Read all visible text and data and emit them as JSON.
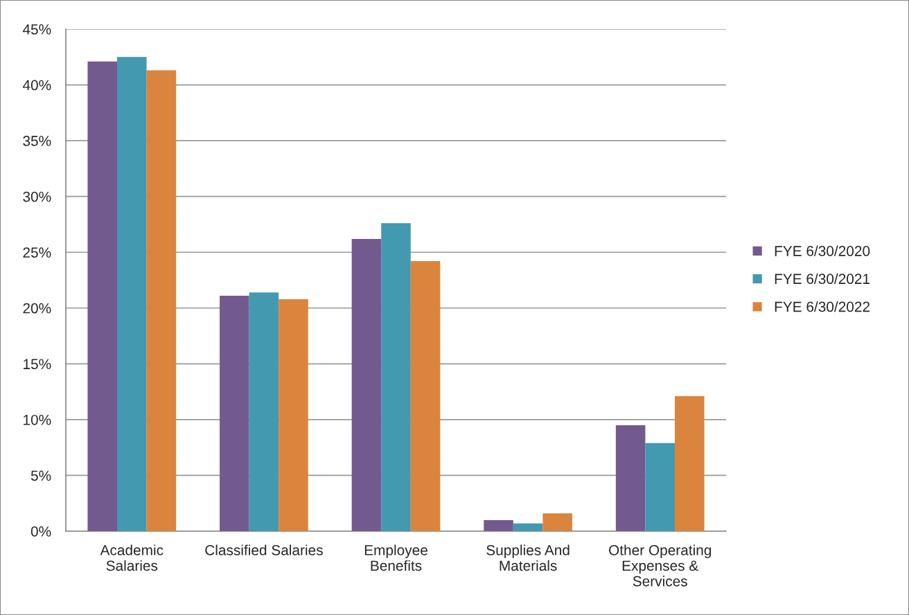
{
  "chart_data": {
    "type": "bar",
    "categories": [
      "Academic\nSalaries",
      "Classified Salaries",
      "Employee\nBenefits",
      "Supplies And\nMaterials",
      "Other Operating\nExpenses &\nServices"
    ],
    "series": [
      {
        "name": "FYE 6/30/2020",
        "color": "#725a8f",
        "values": [
          42.1,
          21.1,
          26.2,
          1.0,
          9.5
        ]
      },
      {
        "name": "FYE 6/30/2021",
        "color": "#4299b0",
        "values": [
          42.5,
          21.4,
          27.6,
          0.7,
          7.9
        ]
      },
      {
        "name": "FYE 6/30/2022",
        "color": "#db843d",
        "values": [
          41.3,
          20.8,
          24.2,
          1.6,
          12.1
        ]
      }
    ],
    "ylim": [
      0,
      45
    ],
    "yticks": [
      {
        "value": 0,
        "label": "0%"
      },
      {
        "value": 5,
        "label": "5%"
      },
      {
        "value": 10,
        "label": "10%"
      },
      {
        "value": 15,
        "label": "15%"
      },
      {
        "value": 20,
        "label": "20%"
      },
      {
        "value": 25,
        "label": "25%"
      },
      {
        "value": 30,
        "label": "30%"
      },
      {
        "value": 35,
        "label": "35%"
      },
      {
        "value": 40,
        "label": "40%"
      },
      {
        "value": 45,
        "label": "45%"
      }
    ],
    "grid": "y",
    "legend": "right"
  }
}
